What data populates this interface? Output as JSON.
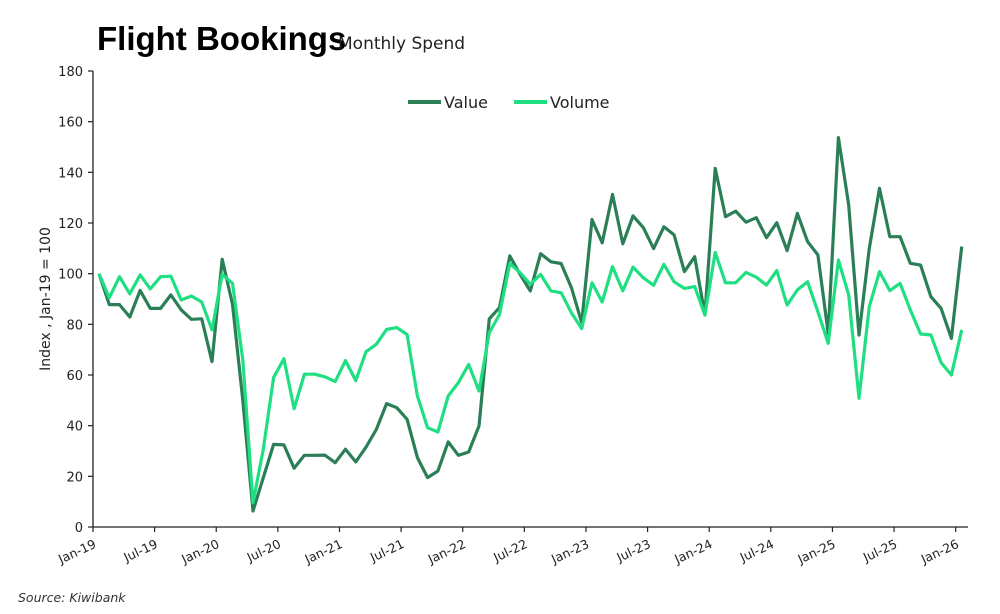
{
  "title": "Flight Bookings",
  "subtitle": "Monthly Spend",
  "source": "Source: Kiwibank",
  "chart_data": {
    "type": "line",
    "title": "Flight Bookings",
    "subtitle": "Monthly Spend",
    "ylabel": "Index , Jan-19 = 100",
    "xlabel": "",
    "ylim": [
      0,
      180
    ],
    "yticks": [
      0,
      20,
      40,
      60,
      80,
      100,
      120,
      140,
      160,
      180
    ],
    "x_start": "Jan-19",
    "x_end": "Jan-26",
    "frequency": "monthly",
    "xtick_labels": [
      "Jan-19",
      "Jul-19",
      "Jan-20",
      "Jul-20",
      "Jan-21",
      "Jul-21",
      "Jan-22",
      "Jul-22",
      "Jan-23",
      "Jul-23",
      "Jan-24",
      "Jul-24",
      "Jan-25",
      "Jul-25",
      "Jan-26"
    ],
    "grid": false,
    "legend_placement": "top-center",
    "series": [
      {
        "name": "Value",
        "color": "#2b7f57",
        "values": [
          100,
          87.8,
          87.8,
          82.9,
          93.4,
          86.3,
          86.3,
          91.6,
          85.7,
          82,
          82.2,
          65.3,
          105.7,
          87.9,
          50,
          6.3,
          19.5,
          32.6,
          32.4,
          23.2,
          28.3,
          28.3,
          28.4,
          25.4,
          30.7,
          25.7,
          31.5,
          38.5,
          48.7,
          47.1,
          42.5,
          27.4,
          19.5,
          22.1,
          33.6,
          28.3,
          29.6,
          39.9,
          82.2,
          86.6,
          107,
          99.7,
          93.2,
          107.9,
          104.7,
          104,
          94.5,
          80.7,
          121.4,
          112.2,
          131.3,
          111.8,
          122.8,
          118.2,
          109.9,
          118.5,
          115.3,
          100.8,
          106.7,
          83.7,
          141.6,
          122.5,
          124.7,
          120.3,
          122.1,
          114.2,
          120.1,
          109.1,
          123.8,
          112.6,
          107.4,
          76.4,
          153.7,
          127.1,
          75.8,
          110,
          133.7,
          114.6,
          114.6,
          104.1,
          103.4,
          90.9,
          86.3,
          74.5,
          110.7
        ]
      },
      {
        "name": "Volume",
        "color": "#1fdf82",
        "values": [
          100,
          90.5,
          98.8,
          92,
          99.5,
          94,
          98.8,
          99,
          89.6,
          91.2,
          88.8,
          77.8,
          99.7,
          96.2,
          66,
          9.6,
          30.7,
          59,
          66.4,
          46.7,
          60.3,
          60.3,
          59.3,
          57.4,
          65.7,
          57.8,
          69.2,
          72.1,
          78,
          78.7,
          76,
          51.7,
          39.2,
          37.5,
          51.7,
          57,
          64.2,
          53.7,
          76.7,
          83.9,
          104,
          100.4,
          95.8,
          99.7,
          93.2,
          92.5,
          84.6,
          78.3,
          96.4,
          88.8,
          102.8,
          93.2,
          102.6,
          98.4,
          95.4,
          103.7,
          96.8,
          94.2,
          94.9,
          83.7,
          108.4,
          96.4,
          96.4,
          100.5,
          98.6,
          95.5,
          101.2,
          87.6,
          93.6,
          96.8,
          85,
          72.5,
          105.4,
          91.6,
          50.8,
          87,
          100.8,
          93.3,
          96.2,
          85.7,
          76.2,
          75.8,
          64.9,
          60,
          77.8
        ]
      }
    ]
  }
}
